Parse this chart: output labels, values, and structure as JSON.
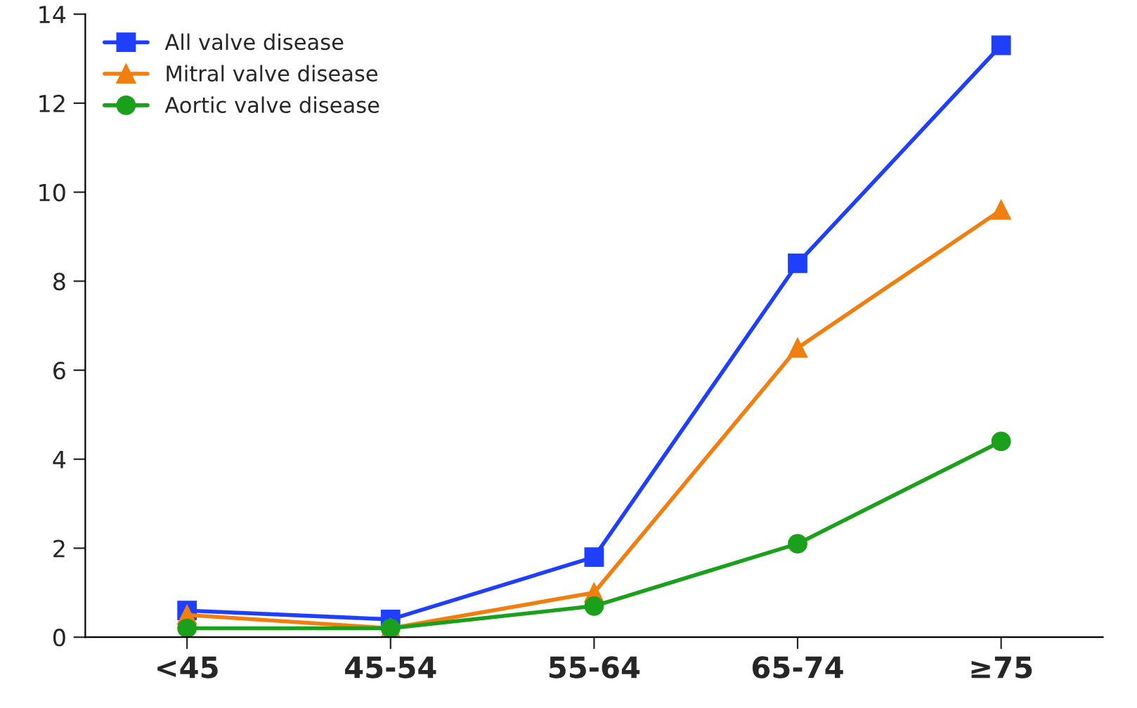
{
  "chart_data": {
    "type": "line",
    "categories": [
      "<45",
      "45-54",
      "55-64",
      "65-74",
      "≥75"
    ],
    "series": [
      {
        "name": "All valve disease",
        "color": "#1f3fff",
        "marker": "square",
        "values": [
          0.6,
          0.4,
          1.8,
          8.4,
          13.3
        ]
      },
      {
        "name": "Mitral valve disease",
        "color": "#f07f10",
        "marker": "triangle",
        "values": [
          0.5,
          0.2,
          1.0,
          6.5,
          9.6
        ]
      },
      {
        "name": "Aortic valve disease",
        "color": "#1aa01a",
        "marker": "circle",
        "values": [
          0.2,
          0.2,
          0.7,
          2.1,
          4.4
        ]
      }
    ],
    "ylim": [
      0,
      14
    ],
    "yticks": [
      0,
      2,
      4,
      6,
      8,
      10,
      12,
      14
    ],
    "grid": false,
    "legend": "top left",
    "line_style": "solid"
  }
}
